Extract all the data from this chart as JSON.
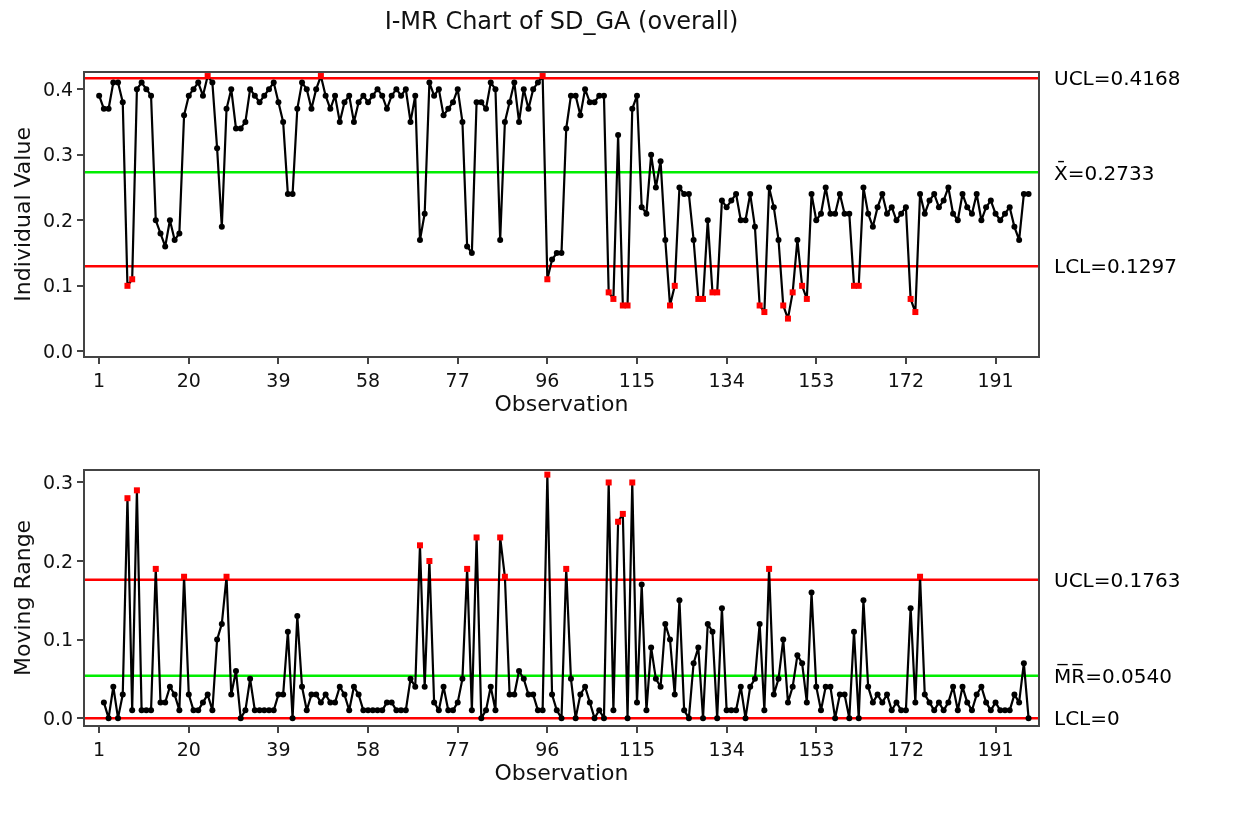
{
  "chart_data": [
    {
      "type": "line",
      "title": "I-MR Chart of SD_GA (overall)",
      "xlabel": "Observation",
      "ylabel": "Individual Value",
      "x": [
        1,
        2,
        3,
        4,
        5,
        6,
        7,
        8,
        9,
        10,
        11,
        12,
        13,
        14,
        15,
        16,
        17,
        18,
        19,
        20,
        21,
        22,
        23,
        24,
        25,
        26,
        27,
        28,
        29,
        30,
        31,
        32,
        33,
        34,
        35,
        36,
        37,
        38,
        39,
        40,
        41,
        42,
        43,
        44,
        45,
        46,
        47,
        48,
        49,
        50,
        51,
        52,
        53,
        54,
        55,
        56,
        57,
        58,
        59,
        60,
        61,
        62,
        63,
        64,
        65,
        66,
        67,
        68,
        69,
        70,
        71,
        72,
        73,
        74,
        75,
        76,
        77,
        78,
        79,
        80,
        81,
        82,
        83,
        84,
        85,
        86,
        87,
        88,
        89,
        90,
        91,
        92,
        93,
        94,
        95,
        96,
        97,
        98,
        99,
        100,
        101,
        102,
        103,
        104,
        105,
        106,
        107,
        108,
        109,
        110,
        111,
        112,
        113,
        114,
        115,
        116,
        117,
        118,
        119,
        120,
        121,
        122,
        123,
        124,
        125,
        126,
        127,
        128,
        129,
        130,
        131,
        132,
        133,
        134,
        135,
        136,
        137,
        138,
        139,
        140,
        141,
        142,
        143,
        144,
        145,
        146,
        147,
        148,
        149,
        150,
        151,
        152,
        153,
        154,
        155,
        156,
        157,
        158,
        159,
        160,
        161,
        162,
        163,
        164,
        165,
        166,
        167,
        168,
        169,
        170,
        171,
        172,
        173,
        174,
        175,
        176,
        177,
        178,
        179,
        180,
        181,
        182,
        183,
        184,
        185,
        186,
        187,
        188,
        189,
        190,
        191,
        192,
        193,
        194,
        195,
        196,
        197,
        198
      ],
      "series": [
        {
          "color": "#000000",
          "values": [
            0.39,
            0.37,
            0.37,
            0.41,
            0.41,
            0.38,
            0.1,
            0.11,
            0.4,
            0.41,
            0.4,
            0.39,
            0.2,
            0.18,
            0.16,
            0.2,
            0.17,
            0.18,
            0.36,
            0.39,
            0.4,
            0.41,
            0.39,
            0.42,
            0.41,
            0.31,
            0.19,
            0.37,
            0.4,
            0.34,
            0.34,
            0.35,
            0.4,
            0.39,
            0.38,
            0.39,
            0.4,
            0.41,
            0.38,
            0.35,
            0.24,
            0.24,
            0.37,
            0.41,
            0.4,
            0.37,
            0.4,
            0.42,
            0.39,
            0.37,
            0.39,
            0.35,
            0.38,
            0.39,
            0.35,
            0.38,
            0.39,
            0.38,
            0.39,
            0.4,
            0.39,
            0.37,
            0.39,
            0.4,
            0.39,
            0.4,
            0.35,
            0.39,
            0.17,
            0.21,
            0.41,
            0.39,
            0.4,
            0.36,
            0.37,
            0.38,
            0.4,
            0.35,
            0.16,
            0.15,
            0.38,
            0.38,
            0.37,
            0.41,
            0.4,
            0.17,
            0.35,
            0.38,
            0.41,
            0.35,
            0.4,
            0.37,
            0.4,
            0.41,
            0.42,
            0.11,
            0.14,
            0.15,
            0.15,
            0.34,
            0.39,
            0.39,
            0.36,
            0.4,
            0.38,
            0.38,
            0.39,
            0.39,
            0.09,
            0.08,
            0.33,
            0.07,
            0.07,
            0.37,
            0.39,
            0.22,
            0.21,
            0.3,
            0.25,
            0.29,
            0.17,
            0.07,
            0.1,
            0.25,
            0.24,
            0.24,
            0.17,
            0.08,
            0.08,
            0.2,
            0.09,
            0.09,
            0.23,
            0.22,
            0.23,
            0.24,
            0.2,
            0.2,
            0.24,
            0.19,
            0.07,
            0.06,
            0.25,
            0.22,
            0.17,
            0.07,
            0.05,
            0.09,
            0.17,
            0.1,
            0.08,
            0.24,
            0.2,
            0.21,
            0.25,
            0.21,
            0.21,
            0.24,
            0.21,
            0.21,
            0.1,
            0.1,
            0.25,
            0.21,
            0.19,
            0.22,
            0.24,
            0.21,
            0.22,
            0.2,
            0.21,
            0.22,
            0.08,
            0.06,
            0.24,
            0.21,
            0.23,
            0.24,
            0.22,
            0.23,
            0.25,
            0.21,
            0.2,
            0.24,
            0.22,
            0.21,
            0.24,
            0.2,
            0.22,
            0.23,
            0.21,
            0.2,
            0.21,
            0.22,
            0.19,
            0.17,
            0.24,
            0.24
          ]
        }
      ],
      "ref_lines": [
        {
          "axis": "y",
          "value": 0.4168,
          "label": "UCL=0.4168",
          "color": "#ff0000"
        },
        {
          "axis": "y",
          "value": 0.2733,
          "label": "X̄=0.2733",
          "color": "#00ee00"
        },
        {
          "axis": "y",
          "value": 0.1297,
          "label": "LCL=0.1297",
          "color": "#ff0000"
        }
      ],
      "xlim": [
        -2,
        200
      ],
      "xticks": [
        1,
        20,
        39,
        58,
        77,
        96,
        115,
        134,
        153,
        172,
        191
      ],
      "ylim": [
        -0.007,
        0.425
      ],
      "yticks": [
        {
          "value": 0,
          "label": "0.0"
        },
        {
          "value": 0.1,
          "label": "0.1"
        },
        {
          "value": 0.2,
          "label": "0.2"
        },
        {
          "value": 0.3,
          "label": "0.3"
        },
        {
          "value": 0.4,
          "label": "0.4"
        }
      ],
      "grid": false,
      "marker": "circle",
      "line_style": "solid"
    },
    {
      "type": "line",
      "xlabel": "Observation",
      "ylabel": "Moving Range",
      "x": [
        2,
        3,
        4,
        5,
        6,
        7,
        8,
        9,
        10,
        11,
        12,
        13,
        14,
        15,
        16,
        17,
        18,
        19,
        20,
        21,
        22,
        23,
        24,
        25,
        26,
        27,
        28,
        29,
        30,
        31,
        32,
        33,
        34,
        35,
        36,
        37,
        38,
        39,
        40,
        41,
        42,
        43,
        44,
        45,
        46,
        47,
        48,
        49,
        50,
        51,
        52,
        53,
        54,
        55,
        56,
        57,
        58,
        59,
        60,
        61,
        62,
        63,
        64,
        65,
        66,
        67,
        68,
        69,
        70,
        71,
        72,
        73,
        74,
        75,
        76,
        77,
        78,
        79,
        80,
        81,
        82,
        83,
        84,
        85,
        86,
        87,
        88,
        89,
        90,
        91,
        92,
        93,
        94,
        95,
        96,
        97,
        98,
        99,
        100,
        101,
        102,
        103,
        104,
        105,
        106,
        107,
        108,
        109,
        110,
        111,
        112,
        113,
        114,
        115,
        116,
        117,
        118,
        119,
        120,
        121,
        122,
        123,
        124,
        125,
        126,
        127,
        128,
        129,
        130,
        131,
        132,
        133,
        134,
        135,
        136,
        137,
        138,
        139,
        140,
        141,
        142,
        143,
        144,
        145,
        146,
        147,
        148,
        149,
        150,
        151,
        152,
        153,
        154,
        155,
        156,
        157,
        158,
        159,
        160,
        161,
        162,
        163,
        164,
        165,
        166,
        167,
        168,
        169,
        170,
        171,
        172,
        173,
        174,
        175,
        176,
        177,
        178,
        179,
        180,
        181,
        182,
        183,
        184,
        185,
        186,
        187,
        188,
        189,
        190,
        191,
        192,
        193,
        194,
        195,
        196,
        197,
        198
      ],
      "series": [
        {
          "color": "#000000",
          "values": [
            0.02,
            0,
            0.04,
            0,
            0.03,
            0.28,
            0.01,
            0.29,
            0.01,
            0.01,
            0.01,
            0.19,
            0.02,
            0.02,
            0.04,
            0.03,
            0.01,
            0.18,
            0.03,
            0.01,
            0.01,
            0.02,
            0.03,
            0.01,
            0.1,
            0.12,
            0.18,
            0.03,
            0.06,
            0,
            0.01,
            0.05,
            0.01,
            0.01,
            0.01,
            0.01,
            0.01,
            0.03,
            0.03,
            0.11,
            0,
            0.13,
            0.04,
            0.01,
            0.03,
            0.03,
            0.02,
            0.03,
            0.02,
            0.02,
            0.04,
            0.03,
            0.01,
            0.04,
            0.03,
            0.01,
            0.01,
            0.01,
            0.01,
            0.01,
            0.02,
            0.02,
            0.01,
            0.01,
            0.01,
            0.05,
            0.04,
            0.22,
            0.04,
            0.2,
            0.02,
            0.01,
            0.04,
            0.01,
            0.01,
            0.02,
            0.05,
            0.19,
            0.01,
            0.23,
            0,
            0.01,
            0.04,
            0.01,
            0.23,
            0.18,
            0.03,
            0.03,
            0.06,
            0.05,
            0.03,
            0.03,
            0.01,
            0.01,
            0.31,
            0.03,
            0.01,
            0,
            0.19,
            0.05,
            0,
            0.03,
            0.04,
            0.02,
            0,
            0.01,
            0,
            0.3,
            0.01,
            0.25,
            0.26,
            0,
            0.3,
            0.02,
            0.17,
            0.01,
            0.09,
            0.05,
            0.04,
            0.12,
            0.1,
            0.03,
            0.15,
            0.01,
            0,
            0.07,
            0.09,
            0,
            0.12,
            0.11,
            0,
            0.14,
            0.01,
            0.01,
            0.01,
            0.04,
            0,
            0.04,
            0.05,
            0.12,
            0.01,
            0.19,
            0.03,
            0.05,
            0.1,
            0.02,
            0.04,
            0.08,
            0.07,
            0.02,
            0.16,
            0.04,
            0.01,
            0.04,
            0.04,
            0,
            0.03,
            0.03,
            0,
            0.11,
            0,
            0.15,
            0.04,
            0.02,
            0.03,
            0.02,
            0.03,
            0.01,
            0.02,
            0.01,
            0.01,
            0.14,
            0.02,
            0.18,
            0.03,
            0.02,
            0.01,
            0.02,
            0.01,
            0.02,
            0.04,
            0.01,
            0.04,
            0.02,
            0.01,
            0.03,
            0.04,
            0.02,
            0.01,
            0.02,
            0.01,
            0.01,
            0.01,
            0.03,
            0.02,
            0.07,
            0
          ]
        }
      ],
      "ref_lines": [
        {
          "axis": "y",
          "value": 0.1763,
          "label": "UCL=0.1763",
          "color": "#ff0000"
        },
        {
          "axis": "y",
          "value": 0.054,
          "label": "M̅R̅=0.0540",
          "color": "#00ee00"
        },
        {
          "axis": "y",
          "value": 0,
          "label": "LCL=0",
          "color": "#ff0000"
        }
      ],
      "xlim": [
        -2,
        200
      ],
      "xticks": [
        1,
        20,
        39,
        58,
        77,
        96,
        115,
        134,
        153,
        172,
        191
      ],
      "ylim": [
        -0.009,
        0.315
      ],
      "yticks": [
        {
          "value": 0,
          "label": "0.0"
        },
        {
          "value": 0.1,
          "label": "0.1"
        },
        {
          "value": 0.2,
          "label": "0.2"
        },
        {
          "value": 0.3,
          "label": "0.3"
        }
      ],
      "grid": false,
      "marker": "circle",
      "line_style": "solid"
    }
  ]
}
